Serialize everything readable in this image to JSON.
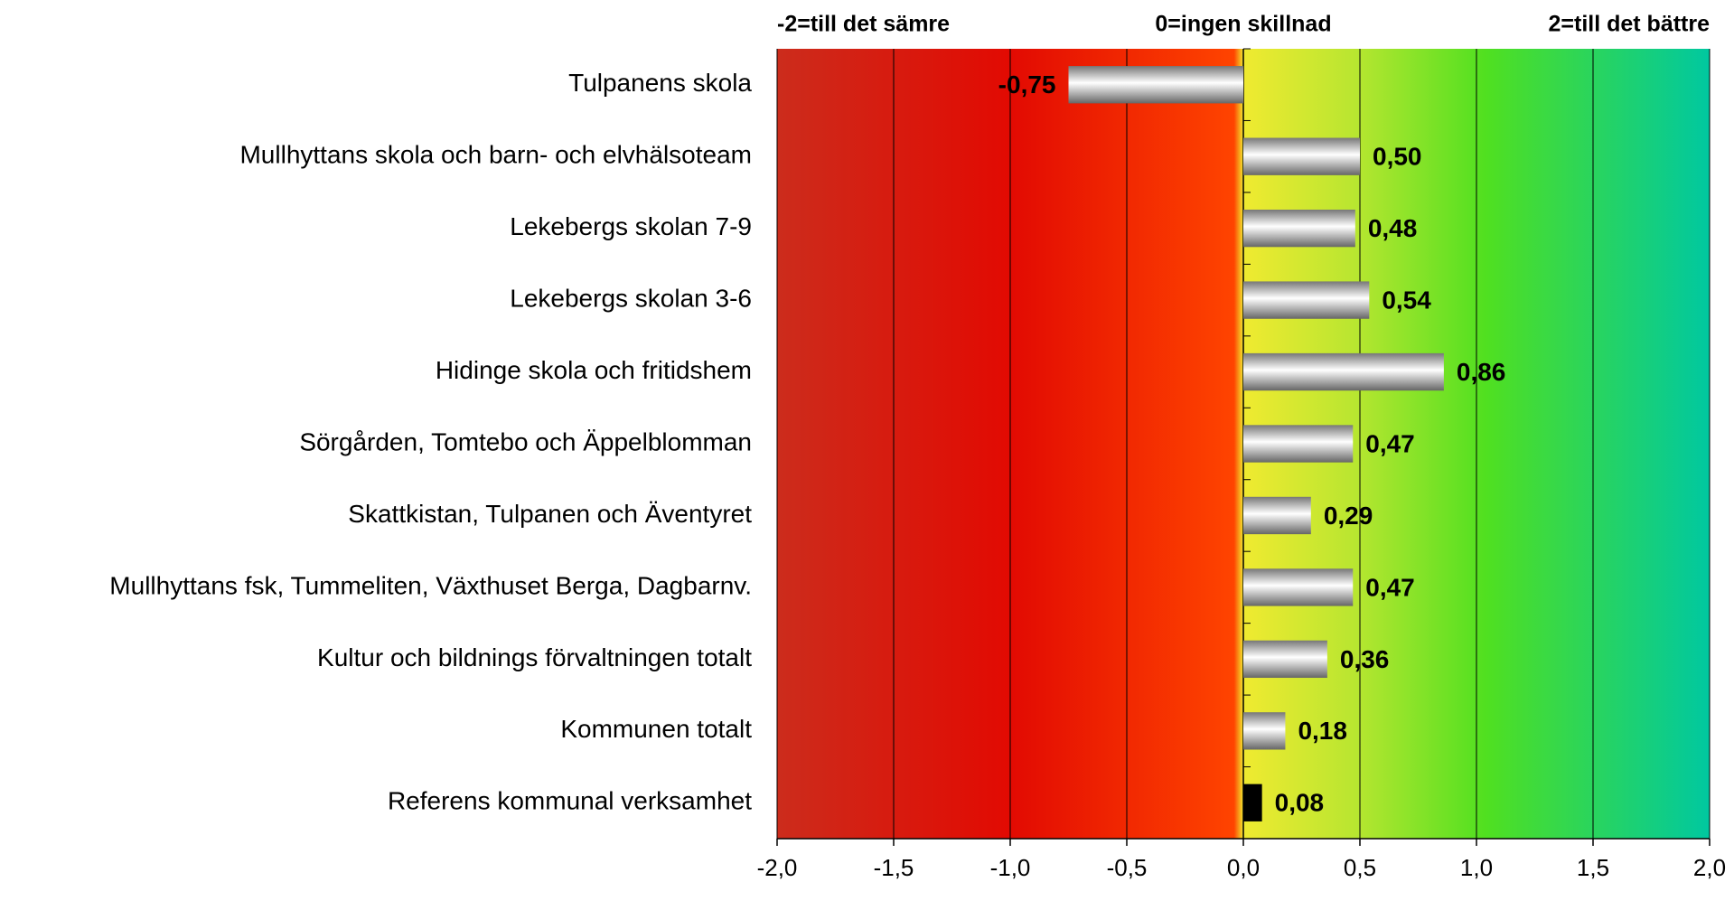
{
  "chart_data": {
    "type": "hbar",
    "scale_labels": [
      "-2=till det sämre",
      "0=ingen skillnad",
      "2=till det bättre"
    ],
    "categories": [
      "Tulpanens skola",
      "Mullhyttans skola och barn- och elvhälsoteam",
      "Lekebergs skolan 7-9",
      "Lekebergs skolan 3-6",
      "Hidinge skola och fritidshem",
      "Sörgården, Tomtebo och Äppelblomman",
      "Skattkistan, Tulpanen och Äventyret",
      "Mullhyttans fsk, Tummeliten, Växthuset Berga, Dagbarnv.",
      "Kultur och bildnings förvaltningen totalt",
      "Kommunen totalt",
      "Referens kommunal verksamhet"
    ],
    "values": [
      -0.75,
      0.5,
      0.48,
      0.54,
      0.86,
      0.47,
      0.29,
      0.47,
      0.36,
      0.18,
      0.08
    ],
    "value_labels": [
      "-0,75",
      "0,50",
      "0,48",
      "0,54",
      "0,86",
      "0,47",
      "0,29",
      "0,47",
      "0,36",
      "0,18",
      "0,08"
    ],
    "colors": [
      "silver",
      "silver",
      "silver",
      "silver",
      "silver",
      "silver",
      "silver",
      "silver",
      "silver",
      "silver",
      "#000000"
    ],
    "xlim": [
      -2,
      2
    ],
    "xticks": [
      {
        "value": -2,
        "label": "-2,0"
      },
      {
        "value": -1.5,
        "label": "-1,5"
      },
      {
        "value": -1,
        "label": "-1,0"
      },
      {
        "value": -0.5,
        "label": "-0,5"
      },
      {
        "value": 0,
        "label": "0,0"
      },
      {
        "value": 0.5,
        "label": "0,5"
      },
      {
        "value": 1,
        "label": "1,0"
      },
      {
        "value": 1.5,
        "label": "1,5"
      },
      {
        "value": 2,
        "label": "2,0"
      }
    ],
    "grid": true
  }
}
